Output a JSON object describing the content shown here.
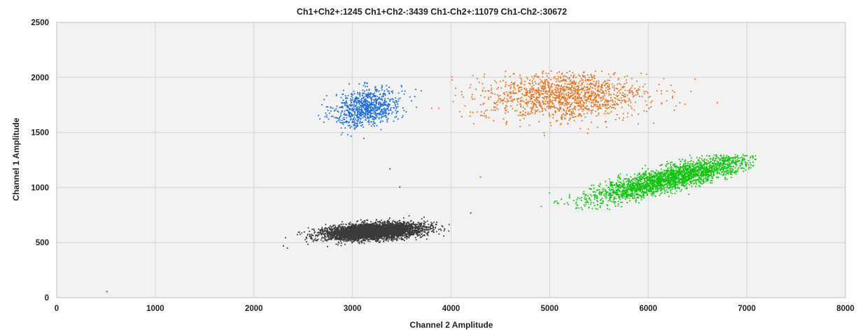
{
  "chart_data": {
    "type": "scatter",
    "title": "Ch1+Ch2+:1245  Ch1+Ch2-:3439  Ch1-Ch2+:11079  Ch1-Ch2-:30672",
    "xlabel": "Channel 2 Amplitude",
    "ylabel": "Channel 1 Amplitude",
    "xlim": [
      0,
      8000
    ],
    "ylim": [
      0,
      2500
    ],
    "x_ticks": [
      "0",
      "1000",
      "2000",
      "3000",
      "4000",
      "5000",
      "6000",
      "7000",
      "8000"
    ],
    "y_ticks": [
      "0",
      "500",
      "1000",
      "1500",
      "2000",
      "2500"
    ],
    "grid": true,
    "legend": "none",
    "background_color": "#f2f2f2",
    "grid_color": "#d4d4d4",
    "clusters": [
      {
        "population": "Ch1+Ch2+",
        "count": 1245,
        "color": "#1f6fd6",
        "center": [
          3150,
          1730
        ],
        "spread": [
          170,
          85
        ],
        "tilt": 0.15,
        "range_x": [
          2600,
          3700
        ],
        "range_y": [
          1380,
          1960
        ]
      },
      {
        "population": "Ch1+Ch2-",
        "count": 3439,
        "color": "#e8701d",
        "center": [
          5150,
          1830
        ],
        "spread": [
          420,
          110
        ],
        "tilt": 0.0,
        "range_x": [
          3800,
          6700
        ],
        "range_y": [
          1100,
          2060
        ]
      },
      {
        "population": "Ch1-Ch2+",
        "count": 11079,
        "color": "#11c40f",
        "center": [
          6250,
          1090
        ],
        "spread": [
          420,
          55
        ],
        "tilt": 0.22,
        "range_x": [
          4500,
          7100
        ],
        "range_y": [
          800,
          1300
        ]
      },
      {
        "population": "Ch1-Ch2-",
        "count": 30672,
        "color": "#3a3a3a",
        "center": [
          3200,
          600
        ],
        "spread": [
          250,
          35
        ],
        "tilt": 0.05,
        "range_x": [
          2300,
          4000
        ],
        "range_y": [
          450,
          800
        ]
      }
    ],
    "outliers": [
      {
        "x": 510,
        "y": 55,
        "color": "#555555"
      },
      {
        "x": 2300,
        "y": 470,
        "color": "#555555"
      },
      {
        "x": 2340,
        "y": 450,
        "color": "#555555"
      },
      {
        "x": 3480,
        "y": 1005,
        "color": "#555555"
      },
      {
        "x": 4200,
        "y": 770,
        "color": "#555555"
      },
      {
        "x": 3380,
        "y": 1170,
        "color": "#1f6fd6"
      },
      {
        "x": 4300,
        "y": 1095,
        "color": "#e8701d"
      },
      {
        "x": 6700,
        "y": 1770,
        "color": "#e8701d"
      }
    ]
  }
}
